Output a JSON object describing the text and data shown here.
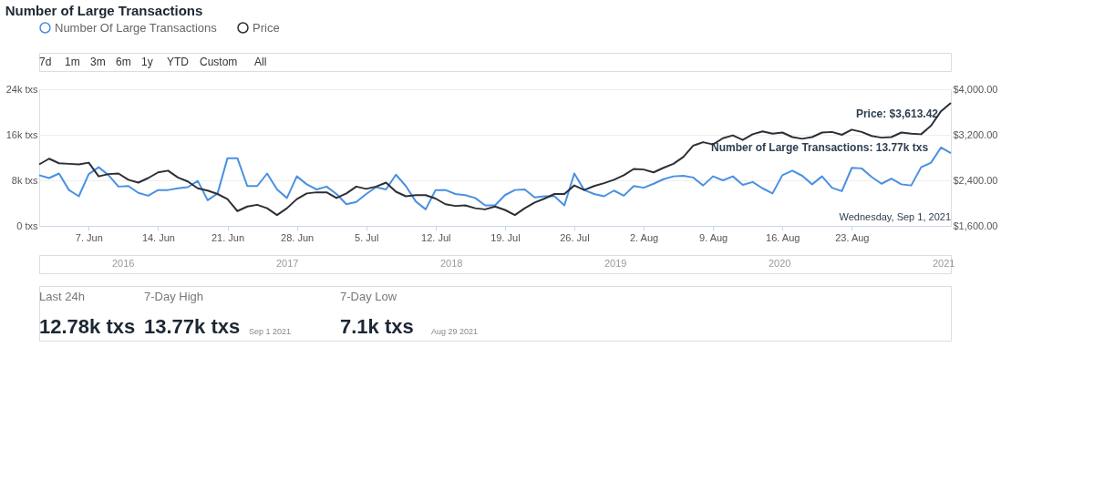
{
  "chart_data": {
    "type": "line",
    "title": "Number of Large Transactions",
    "x": [
      "2021-06-02",
      "2021-06-03",
      "2021-06-04",
      "2021-06-05",
      "2021-06-06",
      "2021-06-07",
      "2021-06-08",
      "2021-06-09",
      "2021-06-10",
      "2021-06-11",
      "2021-06-12",
      "2021-06-13",
      "2021-06-14",
      "2021-06-15",
      "2021-06-16",
      "2021-06-17",
      "2021-06-18",
      "2021-06-19",
      "2021-06-20",
      "2021-06-21",
      "2021-06-22",
      "2021-06-23",
      "2021-06-24",
      "2021-06-25",
      "2021-06-26",
      "2021-06-27",
      "2021-06-28",
      "2021-06-29",
      "2021-06-30",
      "2021-07-01",
      "2021-07-02",
      "2021-07-03",
      "2021-07-04",
      "2021-07-05",
      "2021-07-06",
      "2021-07-07",
      "2021-07-08",
      "2021-07-09",
      "2021-07-10",
      "2021-07-11",
      "2021-07-12",
      "2021-07-13",
      "2021-07-14",
      "2021-07-15",
      "2021-07-16",
      "2021-07-17",
      "2021-07-18",
      "2021-07-19",
      "2021-07-20",
      "2021-07-21",
      "2021-07-22",
      "2021-07-23",
      "2021-07-24",
      "2021-07-25",
      "2021-07-26",
      "2021-07-27",
      "2021-07-28",
      "2021-07-29",
      "2021-07-30",
      "2021-07-31",
      "2021-08-01",
      "2021-08-02",
      "2021-08-03",
      "2021-08-04",
      "2021-08-05",
      "2021-08-06",
      "2021-08-07",
      "2021-08-08",
      "2021-08-09",
      "2021-08-10",
      "2021-08-11",
      "2021-08-12",
      "2021-08-13",
      "2021-08-14",
      "2021-08-15",
      "2021-08-16",
      "2021-08-17",
      "2021-08-18",
      "2021-08-19",
      "2021-08-20",
      "2021-08-21",
      "2021-08-22",
      "2021-08-23",
      "2021-08-24",
      "2021-08-25",
      "2021-08-26",
      "2021-08-27",
      "2021-08-28",
      "2021-08-29",
      "2021-08-30",
      "2021-08-31",
      "2021-09-01",
      "2021-09-02"
    ],
    "series": [
      {
        "name": "Number Of Large Transactions",
        "color": "#4a90e2",
        "values": [
          8.9,
          8.4,
          9.2,
          6.3,
          5.2,
          9.1,
          10.3,
          8.9,
          6.9,
          7.0,
          5.8,
          5.3,
          6.3,
          6.3,
          6.6,
          6.8,
          7.9,
          4.5,
          5.7,
          11.9,
          11.9,
          7.0,
          7.0,
          9.2,
          6.4,
          4.9,
          8.7,
          7.3,
          6.4,
          6.9,
          5.6,
          3.8,
          4.2,
          5.6,
          6.8,
          6.4,
          9.0,
          7.0,
          4.3,
          2.9,
          6.3,
          6.3,
          5.6,
          5.4,
          4.9,
          3.6,
          3.6,
          5.4,
          6.3,
          6.4,
          5.0,
          5.2,
          5.2,
          3.6,
          9.2,
          6.3,
          5.6,
          5.2,
          6.2,
          5.3,
          7.0,
          6.7,
          7.4,
          8.2,
          8.7,
          8.8,
          8.5,
          7.1,
          8.7,
          8.0,
          8.7,
          7.2,
          7.7,
          6.6,
          5.7,
          8.9,
          9.7,
          8.8,
          7.3,
          8.7,
          6.7,
          6.1,
          10.2,
          10.1,
          8.6,
          7.4,
          8.3,
          7.3,
          7.1,
          10.3,
          11.1,
          13.77,
          12.78
        ]
      },
      {
        "name": "Price",
        "color": "#2b2f36",
        "axis": "y2",
        "values": [
          2680,
          2780,
          2700,
          2690,
          2680,
          2710,
          2470,
          2510,
          2520,
          2410,
          2360,
          2440,
          2540,
          2570,
          2450,
          2380,
          2260,
          2220,
          2160,
          2070,
          1860,
          1940,
          1970,
          1910,
          1790,
          1910,
          2070,
          2170,
          2190,
          2190,
          2090,
          2170,
          2290,
          2250,
          2290,
          2360,
          2200,
          2120,
          2140,
          2140,
          2080,
          1980,
          1950,
          1960,
          1910,
          1890,
          1940,
          1880,
          1790,
          1910,
          2010,
          2080,
          2160,
          2160,
          2310,
          2230,
          2300,
          2350,
          2410,
          2490,
          2600,
          2590,
          2540,
          2620,
          2690,
          2810,
          3010,
          3070,
          3030,
          3140,
          3190,
          3110,
          3210,
          3260,
          3220,
          3240,
          3160,
          3130,
          3160,
          3240,
          3250,
          3200,
          3290,
          3250,
          3180,
          3150,
          3160,
          3240,
          3220,
          3210,
          3360,
          3613.42,
          3760
        ]
      }
    ],
    "xlim": [
      "2021-06-02",
      "2021-09-02"
    ],
    "xticks": [
      {
        "value": "2021-06-07",
        "label": "7. Jun"
      },
      {
        "value": "2021-06-14",
        "label": "14. Jun"
      },
      {
        "value": "2021-06-21",
        "label": "21. Jun"
      },
      {
        "value": "2021-06-28",
        "label": "28. Jun"
      },
      {
        "value": "2021-07-05",
        "label": "5. Jul"
      },
      {
        "value": "2021-07-12",
        "label": "12. Jul"
      },
      {
        "value": "2021-07-19",
        "label": "19. Jul"
      },
      {
        "value": "2021-07-26",
        "label": "26. Jul"
      },
      {
        "value": "2021-08-02",
        "label": "2. Aug"
      },
      {
        "value": "2021-08-09",
        "label": "9. Aug"
      },
      {
        "value": "2021-08-16",
        "label": "16. Aug"
      },
      {
        "value": "2021-08-23",
        "label": "23. Aug"
      }
    ],
    "ylim": [
      0,
      24
    ],
    "yticks": [
      {
        "value": 0,
        "label": "0 txs"
      },
      {
        "value": 8,
        "label": "8k txs"
      },
      {
        "value": 16,
        "label": "16k txs"
      },
      {
        "value": 24,
        "label": "24k txs"
      }
    ],
    "y2lim": [
      1600,
      4000
    ],
    "y2ticks": [
      {
        "value": 1600,
        "label": "$1,600.00"
      },
      {
        "value": 2400,
        "label": "$2,400.00"
      },
      {
        "value": 3200,
        "label": "$3,200.00"
      },
      {
        "value": 4000,
        "label": "$4,000.00"
      }
    ],
    "grid": "y",
    "legend": "top left",
    "marker": "none",
    "line_style": "solid",
    "annotations": [
      {
        "text": "Number of Large Transactions: 13.77k txs",
        "x": "2021-09-01",
        "y": 13.77
      },
      "Price: $3,613.42",
      "Wednesday, Sep 1, 2021",
      "7d",
      "1m",
      "3m",
      "6m",
      "1y",
      "YTD",
      "Custom",
      "All",
      "2016",
      "2017",
      "2018",
      "2019",
      "2020",
      "2021",
      "Last 24h",
      "12.78k txs",
      "7-Day High",
      "13.77k txs",
      "Sep 1 2021",
      "7-Day Low",
      "7.1k txs",
      "Aug 29 2021"
    ]
  }
}
